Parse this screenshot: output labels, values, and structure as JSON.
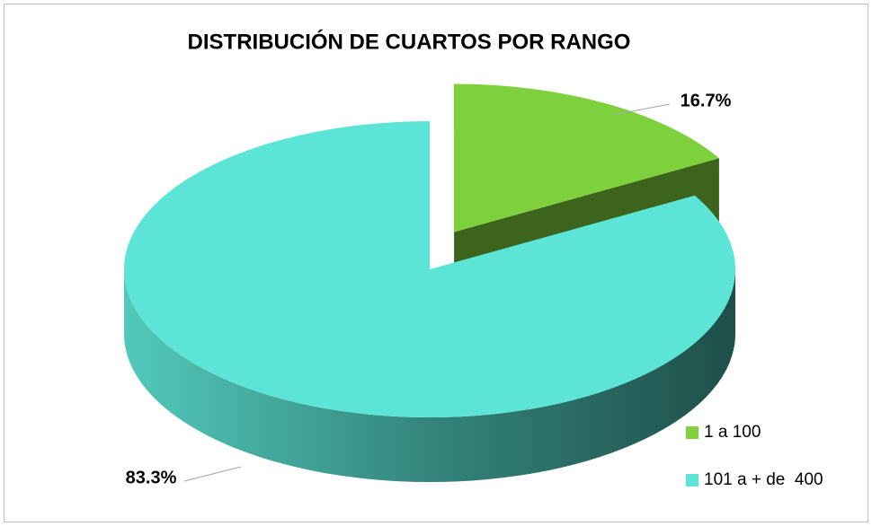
{
  "chart_data": {
    "type": "pie",
    "title": "DISTRIBUCIÓN DE CUARTOS POR RANGO",
    "categories": [
      "1 a 100",
      "101 a + de  400"
    ],
    "values": [
      16.7,
      83.3
    ],
    "value_labels": [
      "16.7%",
      "83.3%"
    ],
    "colors": [
      "#7ed13c",
      "#5ce5d6"
    ],
    "legend": "bottom-right"
  }
}
